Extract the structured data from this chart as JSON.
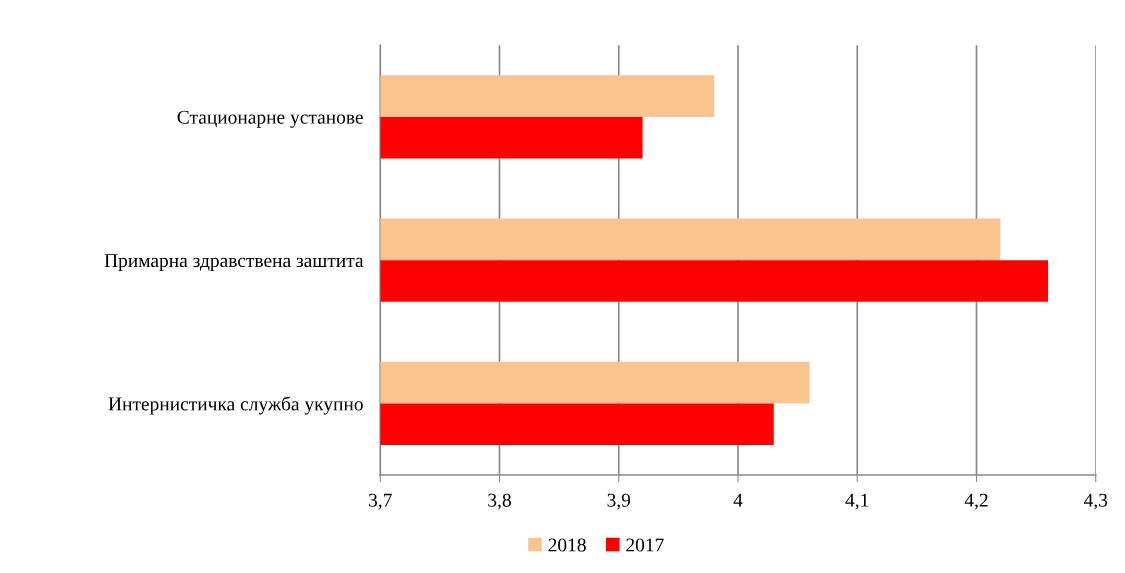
{
  "chart_data": {
    "type": "bar",
    "orientation": "horizontal",
    "categories": [
      "Стационарне установе",
      "Примарна здравствена заштита",
      "Интернистичка служба укупно"
    ],
    "series": [
      {
        "name": "2018",
        "color": "#f9c490",
        "values": [
          3.98,
          4.22,
          4.06
        ]
      },
      {
        "name": "2017",
        "color": "#ff0000",
        "values": [
          3.92,
          4.26,
          4.03
        ]
      }
    ],
    "xlim": [
      3.7,
      4.3
    ],
    "xticks": [
      {
        "value": 3.7,
        "label": "3,7"
      },
      {
        "value": 3.8,
        "label": "3,8"
      },
      {
        "value": 3.9,
        "label": "3,9"
      },
      4,
      {
        "value": 4.1,
        "label": "4,1"
      },
      {
        "value": 4.2,
        "label": "4,2"
      },
      {
        "value": 4.3,
        "label": "4,3"
      }
    ],
    "grid": "x",
    "legend": "bottom"
  }
}
